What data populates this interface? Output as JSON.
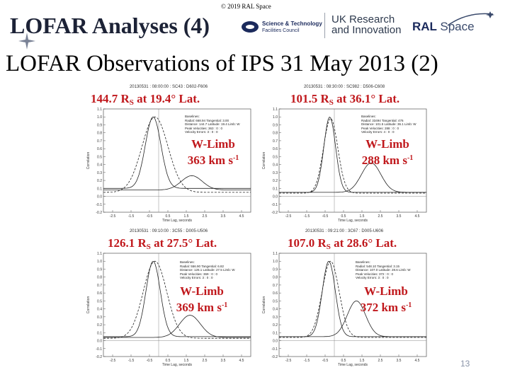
{
  "header": {
    "copyright": "© 2019 RAL Space",
    "title": "LOFAR Analyses (4)",
    "subtitle": "LOFAR Observations of IPS 31 May 2013 (2)",
    "page_number": "13"
  },
  "logos": {
    "stfc_line1": "Science & Technology",
    "stfc_line2": "Facilities Council",
    "ukri_line1": "UK Research",
    "ukri_line2": "and Innovation",
    "ral_word": "RAL",
    "ral_space": "Space"
  },
  "chart_data": [
    {
      "type": "line",
      "header": "20130531 : 08:00:00 : SC43 : D602-F606",
      "title": "144.7 R",
      "title_sub": "S",
      "title_rest": " at 19.4° Lat.",
      "limb_line1": "W-Limb",
      "limb_line2": "363 km s",
      "limb_sup": "-1",
      "info": [
        "Baselines:",
        "Radial: 668.94 Tangential: 3.00",
        "Distance: 144.7 Latitude: 19.4 Limb: W",
        "Peak Velocities: 363 : 0 : 0",
        "Velocity Errors: 3 : 0 : 0"
      ],
      "xlabel": "Time Lag, seconds",
      "ylabel": "Correlation",
      "xlim": [
        -3,
        5
      ],
      "ylim": [
        -0.2,
        1.1
      ],
      "xticks": [
        "-2.5",
        "-1.5",
        "-0.5",
        "0.5",
        "1.5",
        "2.5",
        "3.5",
        "4.5"
      ],
      "yticks": [
        "-0.2",
        "-0.1",
        "0.0",
        "0.1",
        "0.2",
        "0.3",
        "0.4",
        "0.5",
        "0.6",
        "0.7",
        "0.8",
        "0.9",
        "1.0",
        "1.1"
      ],
      "series": [
        {
          "style": "solid",
          "peak": 1.0,
          "center": -0.3,
          "width": 0.6,
          "baseline": 0.1
        },
        {
          "style": "dashed",
          "peak": 1.0,
          "center": -0.2,
          "width": 1.0,
          "baseline": 0.05
        },
        {
          "style": "solid",
          "peak": 0.26,
          "center": 1.8,
          "width": 0.8,
          "baseline": 0.08
        }
      ]
    },
    {
      "type": "line",
      "header": "20130531 : 08:30:00 : SC982 : D506-C608",
      "title": "101.5 R",
      "title_sub": "S",
      "title_rest": " at 36.1° Lat.",
      "limb_line1": "W-Limb",
      "limb_line2": "288 km s",
      "limb_sup": "-1",
      "info": [
        "Baselines:",
        "Radial: 33494 Tangential: 476",
        "Distance: 101.5 Latitude: 36.1 Limb: W",
        "Peak Velocities: 288 : 0 : 0",
        "Velocity Errors: 4 : 0 : 0"
      ],
      "xlabel": "Time Lag, seconds",
      "ylabel": "Correlation",
      "xlim": [
        -3,
        5
      ],
      "ylim": [
        -0.2,
        1.1
      ],
      "xticks": [
        "-2.5",
        "-1.5",
        "-0.5",
        "0.5",
        "1.5",
        "2.5",
        "3.5",
        "4.5"
      ],
      "yticks": [
        "-0.2",
        "-0.1",
        "0.0",
        "0.1",
        "0.2",
        "0.3",
        "0.4",
        "0.5",
        "0.6",
        "0.7",
        "0.8",
        "0.9",
        "1.0",
        "1.1"
      ],
      "series": [
        {
          "style": "solid",
          "peak": 1.0,
          "center": -0.25,
          "width": 0.45,
          "baseline": 0.05
        },
        {
          "style": "dashed",
          "peak": 0.98,
          "center": -0.2,
          "width": 0.55,
          "baseline": 0.04
        },
        {
          "style": "solid",
          "peak": 0.42,
          "center": 2.0,
          "width": 0.75,
          "baseline": 0.05
        }
      ]
    },
    {
      "type": "line",
      "header": "20130531 : 09:10:00 : 3C55 : D005-U506",
      "title": "126.1 R",
      "title_sub": "S",
      "title_rest": " at 27.5° Lat.",
      "limb_line1": "W-Limb",
      "limb_line2": "369 km s",
      "limb_sup": "-1",
      "info": [
        "Baselines:",
        "Radial: 556.90 Tangential: 6.82",
        "Distance: 126.1 Latitude: 27.5 Limb: W",
        "Peak Velocities: 369 : 0 : 0",
        "Velocity Errors: 3 : 0 : 0"
      ],
      "xlabel": "Time Lag, seconds",
      "ylabel": "Correlation",
      "xlim": [
        -3,
        5
      ],
      "ylim": [
        -0.2,
        1.1
      ],
      "xticks": [
        "-2.5",
        "-1.5",
        "-0.5",
        "0.5",
        "1.5",
        "2.5",
        "3.5",
        "4.5"
      ],
      "yticks": [
        "-0.2",
        "-0.1",
        "0.0",
        "0.1",
        "0.2",
        "0.3",
        "0.4",
        "0.5",
        "0.6",
        "0.7",
        "0.8",
        "0.9",
        "1.0",
        "1.1"
      ],
      "series": [
        {
          "style": "solid",
          "peak": 1.0,
          "center": -0.3,
          "width": 0.55,
          "baseline": 0.05
        },
        {
          "style": "dashed",
          "peak": 1.0,
          "center": -0.2,
          "width": 0.9,
          "baseline": 0.03
        },
        {
          "style": "solid",
          "peak": 0.32,
          "center": 1.7,
          "width": 0.8,
          "baseline": 0.04
        }
      ]
    },
    {
      "type": "line",
      "header": "20130531 : 09:21:00 : 3C67 : D005-U606",
      "title": "107.0 R",
      "title_sub": "S",
      "title_rest": " at 28.6° Lat.",
      "limb_line1": "W-Limb",
      "limb_line2": "372 km s",
      "limb_sup": "-1",
      "info": [
        "Baselines:",
        "Radial: 548.10 Tangential: 3.15",
        "Distance: 107.0 Latitude: 28.6 Limb: W",
        "Peak Velocities: 372 : 0 : 0",
        "Velocity Errors: 3 : 0 : 0"
      ],
      "xlabel": "Time Lag, seconds",
      "ylabel": "Correlation",
      "xlim": [
        -3,
        5
      ],
      "ylim": [
        -0.2,
        1.1
      ],
      "xticks": [
        "-2.5",
        "-1.5",
        "-0.5",
        "0.5",
        "1.5",
        "2.5",
        "3.5",
        "4.5"
      ],
      "yticks": [
        "-0.2",
        "-0.1",
        "0.0",
        "0.1",
        "0.2",
        "0.3",
        "0.4",
        "0.5",
        "0.6",
        "0.7",
        "0.8",
        "0.9",
        "1.0",
        "1.1"
      ],
      "series": [
        {
          "style": "solid",
          "peak": 1.0,
          "center": -0.3,
          "width": 0.5,
          "baseline": 0.05
        },
        {
          "style": "dashed",
          "peak": 1.0,
          "center": -0.2,
          "width": 0.65,
          "baseline": 0.04
        },
        {
          "style": "solid",
          "peak": 0.5,
          "center": 1.2,
          "width": 0.7,
          "baseline": 0.05
        }
      ]
    }
  ]
}
